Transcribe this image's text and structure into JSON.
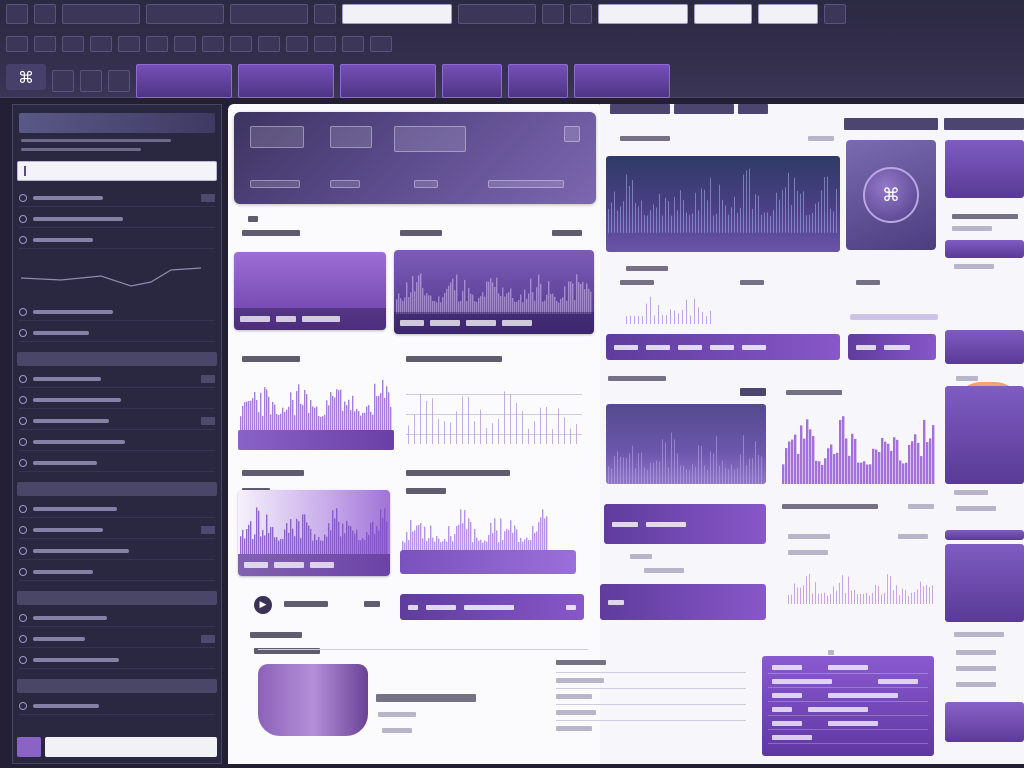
{
  "app": {
    "logo_glyph": "⌘"
  },
  "toolbar": {
    "row1": [
      "",
      "",
      "",
      "",
      "",
      "",
      "",
      "",
      "",
      "",
      "",
      "",
      "",
      "",
      "",
      "",
      "",
      "",
      "",
      ""
    ],
    "row1_inputs": [
      "",
      "",
      "",
      "",
      ""
    ],
    "row2": [
      "",
      "",
      "",
      "",
      "",
      "",
      "",
      "",
      "",
      "",
      "",
      "",
      "",
      "",
      "",
      "",
      ""
    ],
    "row3_tabs": [
      "",
      "",
      "",
      "",
      "",
      ""
    ]
  },
  "sidebar": {
    "header": "",
    "search_placeholder": "",
    "groups": [
      "",
      "",
      "",
      "",
      "",
      ""
    ],
    "item_count_hint": ""
  },
  "main": {
    "header_title": "",
    "header_stats": [
      "",
      "",
      "",
      "",
      "",
      ""
    ],
    "section_labels": [
      "",
      "",
      "",
      "",
      "",
      "",
      "",
      "",
      "",
      ""
    ],
    "player_label": "",
    "footer_rows": [
      "",
      "",
      "",
      ""
    ]
  },
  "right": {
    "top_chart_title": "",
    "rail_items": [
      "",
      "",
      "",
      "",
      "",
      ""
    ],
    "pill_labels": [
      "",
      "",
      "",
      ""
    ],
    "footer_table_rows": [
      "",
      "",
      "",
      "",
      "",
      "",
      ""
    ]
  },
  "colors": {
    "accent_purple": "#8857c9",
    "deep_purple": "#4e3584",
    "chrome_dark": "#2c2942",
    "panel_light": "#fbfafd",
    "accent_orange": "#f0884a"
  },
  "icons": {
    "app_logo": "logo-icon",
    "play": "play-icon",
    "search": "search-icon"
  }
}
